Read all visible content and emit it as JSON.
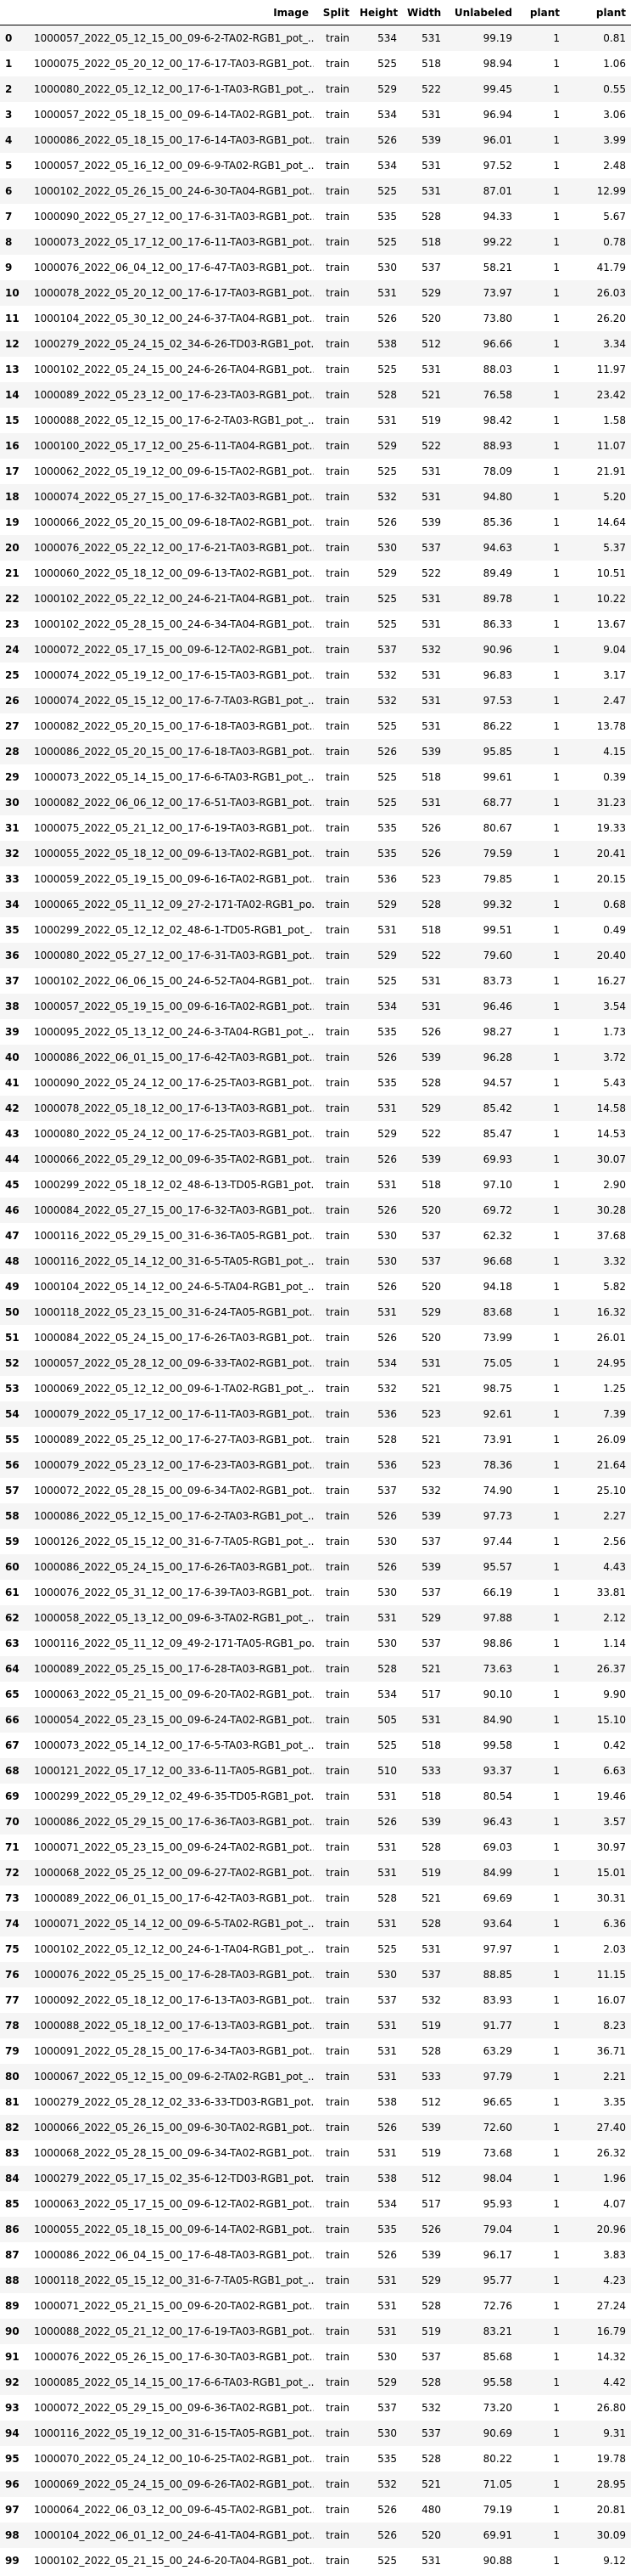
{
  "columns": [
    "",
    "Image",
    "Split",
    "Height",
    "Width",
    "Unlabeled",
    "plant",
    "plant"
  ],
  "rows": [
    [
      "0",
      "1000057_2022_05_12_15_00_09-6-2-TA02-RGB1_pot_...",
      "train",
      "534",
      "531",
      "99.19",
      "1",
      "0.81"
    ],
    [
      "1",
      "1000075_2022_05_20_12_00_17-6-17-TA03-RGB1_pot...",
      "train",
      "525",
      "518",
      "98.94",
      "1",
      "1.06"
    ],
    [
      "2",
      "1000080_2022_05_12_12_00_17-6-1-TA03-RGB1_pot_...",
      "train",
      "529",
      "522",
      "99.45",
      "1",
      "0.55"
    ],
    [
      "3",
      "1000057_2022_05_18_15_00_09-6-14-TA02-RGB1_pot...",
      "train",
      "534",
      "531",
      "96.94",
      "1",
      "3.06"
    ],
    [
      "4",
      "1000086_2022_05_18_15_00_17-6-14-TA03-RGB1_pot...",
      "train",
      "526",
      "539",
      "96.01",
      "1",
      "3.99"
    ],
    [
      "5",
      "1000057_2022_05_16_12_00_09-6-9-TA02-RGB1_pot_...",
      "train",
      "534",
      "531",
      "97.52",
      "1",
      "2.48"
    ],
    [
      "6",
      "1000102_2022_05_26_15_00_24-6-30-TA04-RGB1_pot...",
      "train",
      "525",
      "531",
      "87.01",
      "1",
      "12.99"
    ],
    [
      "7",
      "1000090_2022_05_27_12_00_17-6-31-TA03-RGB1_pot...",
      "train",
      "535",
      "528",
      "94.33",
      "1",
      "5.67"
    ],
    [
      "8",
      "1000073_2022_05_17_12_00_17-6-11-TA03-RGB1_pot...",
      "train",
      "525",
      "518",
      "99.22",
      "1",
      "0.78"
    ],
    [
      "9",
      "1000076_2022_06_04_12_00_17-6-47-TA03-RGB1_pot...",
      "train",
      "530",
      "537",
      "58.21",
      "1",
      "41.79"
    ],
    [
      "10",
      "1000078_2022_05_20_12_00_17-6-17-TA03-RGB1_pot...",
      "train",
      "531",
      "529",
      "73.97",
      "1",
      "26.03"
    ],
    [
      "11",
      "1000104_2022_05_30_12_00_24-6-37-TA04-RGB1_pot...",
      "train",
      "526",
      "520",
      "73.80",
      "1",
      "26.20"
    ],
    [
      "12",
      "1000279_2022_05_24_15_02_34-6-26-TD03-RGB1_pot...",
      "train",
      "538",
      "512",
      "96.66",
      "1",
      "3.34"
    ],
    [
      "13",
      "1000102_2022_05_24_15_00_24-6-26-TA04-RGB1_pot...",
      "train",
      "525",
      "531",
      "88.03",
      "1",
      "11.97"
    ],
    [
      "14",
      "1000089_2022_05_23_12_00_17-6-23-TA03-RGB1_pot...",
      "train",
      "528",
      "521",
      "76.58",
      "1",
      "23.42"
    ],
    [
      "15",
      "1000088_2022_05_12_15_00_17-6-2-TA03-RGB1_pot_...",
      "train",
      "531",
      "519",
      "98.42",
      "1",
      "1.58"
    ],
    [
      "16",
      "1000100_2022_05_17_12_00_25-6-11-TA04-RGB1_pot...",
      "train",
      "529",
      "522",
      "88.93",
      "1",
      "11.07"
    ],
    [
      "17",
      "1000062_2022_05_19_12_00_09-6-15-TA02-RGB1_pot...",
      "train",
      "525",
      "531",
      "78.09",
      "1",
      "21.91"
    ],
    [
      "18",
      "1000074_2022_05_27_15_00_17-6-32-TA03-RGB1_pot...",
      "train",
      "532",
      "531",
      "94.80",
      "1",
      "5.20"
    ],
    [
      "19",
      "1000066_2022_05_20_15_00_09-6-18-TA02-RGB1_pot...",
      "train",
      "526",
      "539",
      "85.36",
      "1",
      "14.64"
    ],
    [
      "20",
      "1000076_2022_05_22_12_00_17-6-21-TA03-RGB1_pot...",
      "train",
      "530",
      "537",
      "94.63",
      "1",
      "5.37"
    ],
    [
      "21",
      "1000060_2022_05_18_12_00_09-6-13-TA02-RGB1_pot...",
      "train",
      "529",
      "522",
      "89.49",
      "1",
      "10.51"
    ],
    [
      "22",
      "1000102_2022_05_22_12_00_24-6-21-TA04-RGB1_pot...",
      "train",
      "525",
      "531",
      "89.78",
      "1",
      "10.22"
    ],
    [
      "23",
      "1000102_2022_05_28_15_00_24-6-34-TA04-RGB1_pot...",
      "train",
      "525",
      "531",
      "86.33",
      "1",
      "13.67"
    ],
    [
      "24",
      "1000072_2022_05_17_15_00_09-6-12-TA02-RGB1_pot...",
      "train",
      "537",
      "532",
      "90.96",
      "1",
      "9.04"
    ],
    [
      "25",
      "1000074_2022_05_19_12_00_17-6-15-TA03-RGB1_pot...",
      "train",
      "532",
      "531",
      "96.83",
      "1",
      "3.17"
    ],
    [
      "26",
      "1000074_2022_05_15_12_00_17-6-7-TA03-RGB1_pot_...",
      "train",
      "532",
      "531",
      "97.53",
      "1",
      "2.47"
    ],
    [
      "27",
      "1000082_2022_05_20_15_00_17-6-18-TA03-RGB1_pot...",
      "train",
      "525",
      "531",
      "86.22",
      "1",
      "13.78"
    ],
    [
      "28",
      "1000086_2022_05_20_15_00_17-6-18-TA03-RGB1_pot...",
      "train",
      "526",
      "539",
      "95.85",
      "1",
      "4.15"
    ],
    [
      "29",
      "1000073_2022_05_14_15_00_17-6-6-TA03-RGB1_pot_...",
      "train",
      "525",
      "518",
      "99.61",
      "1",
      "0.39"
    ],
    [
      "30",
      "1000082_2022_06_06_12_00_17-6-51-TA03-RGB1_pot...",
      "train",
      "525",
      "531",
      "68.77",
      "1",
      "31.23"
    ],
    [
      "31",
      "1000075_2022_05_21_12_00_17-6-19-TA03-RGB1_pot...",
      "train",
      "535",
      "526",
      "80.67",
      "1",
      "19.33"
    ],
    [
      "32",
      "1000055_2022_05_18_12_00_09-6-13-TA02-RGB1_pot...",
      "train",
      "535",
      "526",
      "79.59",
      "1",
      "20.41"
    ],
    [
      "33",
      "1000059_2022_05_19_15_00_09-6-16-TA02-RGB1_pot...",
      "train",
      "536",
      "523",
      "79.85",
      "1",
      "20.15"
    ],
    [
      "34",
      "1000065_2022_05_11_12_09_27-2-171-TA02-RGB1_po...",
      "train",
      "529",
      "528",
      "99.32",
      "1",
      "0.68"
    ],
    [
      "35",
      "1000299_2022_05_12_12_02_48-6-1-TD05-RGB1_pot_...",
      "train",
      "531",
      "518",
      "99.51",
      "1",
      "0.49"
    ],
    [
      "36",
      "1000080_2022_05_27_12_00_17-6-31-TA03-RGB1_pot...",
      "train",
      "529",
      "522",
      "79.60",
      "1",
      "20.40"
    ],
    [
      "37",
      "1000102_2022_06_06_15_00_24-6-52-TA04-RGB1_pot...",
      "train",
      "525",
      "531",
      "83.73",
      "1",
      "16.27"
    ],
    [
      "38",
      "1000057_2022_05_19_15_00_09-6-16-TA02-RGB1_pot...",
      "train",
      "534",
      "531",
      "96.46",
      "1",
      "3.54"
    ],
    [
      "39",
      "1000095_2022_05_13_12_00_24-6-3-TA04-RGB1_pot_...",
      "train",
      "535",
      "526",
      "98.27",
      "1",
      "1.73"
    ],
    [
      "40",
      "1000086_2022_06_01_15_00_17-6-42-TA03-RGB1_pot...",
      "train",
      "526",
      "539",
      "96.28",
      "1",
      "3.72"
    ],
    [
      "41",
      "1000090_2022_05_24_12_00_17-6-25-TA03-RGB1_pot...",
      "train",
      "535",
      "528",
      "94.57",
      "1",
      "5.43"
    ],
    [
      "42",
      "1000078_2022_05_18_12_00_17-6-13-TA03-RGB1_pot...",
      "train",
      "531",
      "529",
      "85.42",
      "1",
      "14.58"
    ],
    [
      "43",
      "1000080_2022_05_24_12_00_17-6-25-TA03-RGB1_pot...",
      "train",
      "529",
      "522",
      "85.47",
      "1",
      "14.53"
    ],
    [
      "44",
      "1000066_2022_05_29_12_00_09-6-35-TA02-RGB1_pot...",
      "train",
      "526",
      "539",
      "69.93",
      "1",
      "30.07"
    ],
    [
      "45",
      "1000299_2022_05_18_12_02_48-6-13-TD05-RGB1_pot...",
      "train",
      "531",
      "518",
      "97.10",
      "1",
      "2.90"
    ],
    [
      "46",
      "1000084_2022_05_27_15_00_17-6-32-TA03-RGB1_pot...",
      "train",
      "526",
      "520",
      "69.72",
      "1",
      "30.28"
    ],
    [
      "47",
      "1000116_2022_05_29_15_00_31-6-36-TA05-RGB1_pot...",
      "train",
      "530",
      "537",
      "62.32",
      "1",
      "37.68"
    ],
    [
      "48",
      "1000116_2022_05_14_12_00_31-6-5-TA05-RGB1_pot_...",
      "train",
      "530",
      "537",
      "96.68",
      "1",
      "3.32"
    ],
    [
      "49",
      "1000104_2022_05_14_12_00_24-6-5-TA04-RGB1_pot_...",
      "train",
      "526",
      "520",
      "94.18",
      "1",
      "5.82"
    ],
    [
      "50",
      "1000118_2022_05_23_15_00_31-6-24-TA05-RGB1_pot...",
      "train",
      "531",
      "529",
      "83.68",
      "1",
      "16.32"
    ],
    [
      "51",
      "1000084_2022_05_24_15_00_17-6-26-TA03-RGB1_pot...",
      "train",
      "526",
      "520",
      "73.99",
      "1",
      "26.01"
    ],
    [
      "52",
      "1000057_2022_05_28_12_00_09-6-33-TA02-RGB1_pot...",
      "train",
      "534",
      "531",
      "75.05",
      "1",
      "24.95"
    ],
    [
      "53",
      "1000069_2022_05_12_12_00_09-6-1-TA02-RGB1_pot_...",
      "train",
      "532",
      "521",
      "98.75",
      "1",
      "1.25"
    ],
    [
      "54",
      "1000079_2022_05_17_12_00_17-6-11-TA03-RGB1_pot...",
      "train",
      "536",
      "523",
      "92.61",
      "1",
      "7.39"
    ],
    [
      "55",
      "1000089_2022_05_25_12_00_17-6-27-TA03-RGB1_pot...",
      "train",
      "528",
      "521",
      "73.91",
      "1",
      "26.09"
    ],
    [
      "56",
      "1000079_2022_05_23_12_00_17-6-23-TA03-RGB1_pot...",
      "train",
      "536",
      "523",
      "78.36",
      "1",
      "21.64"
    ],
    [
      "57",
      "1000072_2022_05_28_15_00_09-6-34-TA02-RGB1_pot...",
      "train",
      "537",
      "532",
      "74.90",
      "1",
      "25.10"
    ],
    [
      "58",
      "1000086_2022_05_12_15_00_17-6-2-TA03-RGB1_pot_...",
      "train",
      "526",
      "539",
      "97.73",
      "1",
      "2.27"
    ],
    [
      "59",
      "1000126_2022_05_15_12_00_31-6-7-TA05-RGB1_pot_...",
      "train",
      "530",
      "537",
      "97.44",
      "1",
      "2.56"
    ],
    [
      "60",
      "1000086_2022_05_24_15_00_17-6-26-TA03-RGB1_pot...",
      "train",
      "526",
      "539",
      "95.57",
      "1",
      "4.43"
    ],
    [
      "61",
      "1000076_2022_05_31_12_00_17-6-39-TA03-RGB1_pot...",
      "train",
      "530",
      "537",
      "66.19",
      "1",
      "33.81"
    ],
    [
      "62",
      "1000058_2022_05_13_12_00_09-6-3-TA02-RGB1_pot_...",
      "train",
      "531",
      "529",
      "97.88",
      "1",
      "2.12"
    ],
    [
      "63",
      "1000116_2022_05_11_12_09_49-2-171-TA05-RGB1_po...",
      "train",
      "530",
      "537",
      "98.86",
      "1",
      "1.14"
    ],
    [
      "64",
      "1000089_2022_05_25_15_00_17-6-28-TA03-RGB1_pot...",
      "train",
      "528",
      "521",
      "73.63",
      "1",
      "26.37"
    ],
    [
      "65",
      "1000063_2022_05_21_15_00_09-6-20-TA02-RGB1_pot...",
      "train",
      "534",
      "517",
      "90.10",
      "1",
      "9.90"
    ],
    [
      "66",
      "1000054_2022_05_23_15_00_09-6-24-TA02-RGB1_pot...",
      "train",
      "505",
      "531",
      "84.90",
      "1",
      "15.10"
    ],
    [
      "67",
      "1000073_2022_05_14_12_00_17-6-5-TA03-RGB1_pot_...",
      "train",
      "525",
      "518",
      "99.58",
      "1",
      "0.42"
    ],
    [
      "68",
      "1000121_2022_05_17_12_00_33-6-11-TA05-RGB1_pot...",
      "train",
      "510",
      "533",
      "93.37",
      "1",
      "6.63"
    ],
    [
      "69",
      "1000299_2022_05_29_12_02_49-6-35-TD05-RGB1_pot...",
      "train",
      "531",
      "518",
      "80.54",
      "1",
      "19.46"
    ],
    [
      "70",
      "1000086_2022_05_29_15_00_17-6-36-TA03-RGB1_pot...",
      "train",
      "526",
      "539",
      "96.43",
      "1",
      "3.57"
    ],
    [
      "71",
      "1000071_2022_05_23_15_00_09-6-24-TA02-RGB1_pot...",
      "train",
      "531",
      "528",
      "69.03",
      "1",
      "30.97"
    ],
    [
      "72",
      "1000068_2022_05_25_12_00_09-6-27-TA02-RGB1_pot...",
      "train",
      "531",
      "519",
      "84.99",
      "1",
      "15.01"
    ],
    [
      "73",
      "1000089_2022_06_01_15_00_17-6-42-TA03-RGB1_pot...",
      "train",
      "528",
      "521",
      "69.69",
      "1",
      "30.31"
    ],
    [
      "74",
      "1000071_2022_05_14_12_00_09-6-5-TA02-RGB1_pot_...",
      "train",
      "531",
      "528",
      "93.64",
      "1",
      "6.36"
    ],
    [
      "75",
      "1000102_2022_05_12_12_00_24-6-1-TA04-RGB1_pot_...",
      "train",
      "525",
      "531",
      "97.97",
      "1",
      "2.03"
    ],
    [
      "76",
      "1000076_2022_05_25_15_00_17-6-28-TA03-RGB1_pot...",
      "train",
      "530",
      "537",
      "88.85",
      "1",
      "11.15"
    ],
    [
      "77",
      "1000092_2022_05_18_12_00_17-6-13-TA03-RGB1_pot...",
      "train",
      "537",
      "532",
      "83.93",
      "1",
      "16.07"
    ],
    [
      "78",
      "1000088_2022_05_18_12_00_17-6-13-TA03-RGB1_pot...",
      "train",
      "531",
      "519",
      "91.77",
      "1",
      "8.23"
    ],
    [
      "79",
      "1000091_2022_05_28_15_00_17-6-34-TA03-RGB1_pot...",
      "train",
      "531",
      "528",
      "63.29",
      "1",
      "36.71"
    ],
    [
      "80",
      "1000067_2022_05_12_15_00_09-6-2-TA02-RGB1_pot_...",
      "train",
      "531",
      "533",
      "97.79",
      "1",
      "2.21"
    ],
    [
      "81",
      "1000279_2022_05_28_12_02_33-6-33-TD03-RGB1_pot...",
      "train",
      "538",
      "512",
      "96.65",
      "1",
      "3.35"
    ],
    [
      "82",
      "1000066_2022_05_26_15_00_09-6-30-TA02-RGB1_pot...",
      "train",
      "526",
      "539",
      "72.60",
      "1",
      "27.40"
    ],
    [
      "83",
      "1000068_2022_05_28_15_00_09-6-34-TA02-RGB1_pot...",
      "train",
      "531",
      "519",
      "73.68",
      "1",
      "26.32"
    ],
    [
      "84",
      "1000279_2022_05_17_15_02_35-6-12-TD03-RGB1_pot...",
      "train",
      "538",
      "512",
      "98.04",
      "1",
      "1.96"
    ],
    [
      "85",
      "1000063_2022_05_17_15_00_09-6-12-TA02-RGB1_pot...",
      "train",
      "534",
      "517",
      "95.93",
      "1",
      "4.07"
    ],
    [
      "86",
      "1000055_2022_05_18_15_00_09-6-14-TA02-RGB1_pot...",
      "train",
      "535",
      "526",
      "79.04",
      "1",
      "20.96"
    ],
    [
      "87",
      "1000086_2022_06_04_15_00_17-6-48-TA03-RGB1_pot...",
      "train",
      "526",
      "539",
      "96.17",
      "1",
      "3.83"
    ],
    [
      "88",
      "1000118_2022_05_15_12_00_31-6-7-TA05-RGB1_pot_...",
      "train",
      "531",
      "529",
      "95.77",
      "1",
      "4.23"
    ],
    [
      "89",
      "1000071_2022_05_21_15_00_09-6-20-TA02-RGB1_pot...",
      "train",
      "531",
      "528",
      "72.76",
      "1",
      "27.24"
    ],
    [
      "90",
      "1000088_2022_05_21_12_00_17-6-19-TA03-RGB1_pot...",
      "train",
      "531",
      "519",
      "83.21",
      "1",
      "16.79"
    ],
    [
      "91",
      "1000076_2022_05_26_15_00_17-6-30-TA03-RGB1_pot...",
      "train",
      "530",
      "537",
      "85.68",
      "1",
      "14.32"
    ],
    [
      "92",
      "1000085_2022_05_14_15_00_17-6-6-TA03-RGB1_pot_...",
      "train",
      "529",
      "528",
      "95.58",
      "1",
      "4.42"
    ],
    [
      "93",
      "1000072_2022_05_29_15_00_09-6-36-TA02-RGB1_pot...",
      "train",
      "537",
      "532",
      "73.20",
      "1",
      "26.80"
    ],
    [
      "94",
      "1000116_2022_05_19_12_00_31-6-15-TA05-RGB1_pot...",
      "train",
      "530",
      "537",
      "90.69",
      "1",
      "9.31"
    ],
    [
      "95",
      "1000070_2022_05_24_12_00_10-6-25-TA02-RGB1_pot...",
      "train",
      "535",
      "528",
      "80.22",
      "1",
      "19.78"
    ],
    [
      "96",
      "1000069_2022_05_24_15_00_09-6-26-TA02-RGB1_pot...",
      "train",
      "532",
      "521",
      "71.05",
      "1",
      "28.95"
    ],
    [
      "97",
      "1000064_2022_06_03_12_00_09-6-45-TA02-RGB1_pot...",
      "train",
      "526",
      "480",
      "79.19",
      "1",
      "20.81"
    ],
    [
      "98",
      "1000104_2022_06_01_12_00_24-6-41-TA04-RGB1_pot...",
      "train",
      "526",
      "520",
      "69.91",
      "1",
      "30.09"
    ],
    [
      "99",
      "1000102_2022_05_21_15_00_24-6-20-TA04-RGB1_pot...",
      "train",
      "525",
      "531",
      "90.88",
      "1",
      "9.12"
    ]
  ]
}
